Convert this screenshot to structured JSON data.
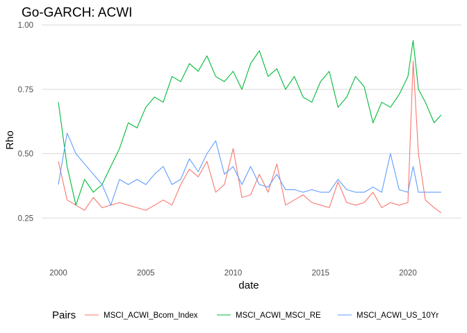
{
  "chart_data": {
    "type": "line",
    "title": "Go-GARCH: ACWI",
    "xlabel": "date",
    "ylabel": "Rho",
    "xlim": [
      2000,
      2021.9
    ],
    "ylim": [
      0.1,
      1.0
    ],
    "x_ticks": [
      2000,
      2005,
      2010,
      2015,
      2020
    ],
    "x_tick_labels": [
      "2000",
      "2005",
      "2010",
      "2015",
      "2020"
    ],
    "y_ticks": [
      0.25,
      0.5,
      0.75,
      1.0
    ],
    "y_tick_labels": [
      "0.25",
      "0.50",
      "0.75",
      "1.00"
    ],
    "grid": true,
    "legend": {
      "title": "Pairs",
      "position": "bottom",
      "entries": [
        "MSCI_ACWI_Bcom_Index",
        "MSCI_ACWI_MSCI_RE",
        "MSCI_ACWI_US_10Yr"
      ]
    },
    "series": [
      {
        "name": "MSCI_ACWI_Bcom_Index",
        "color": "#F8766D",
        "x": [
          2000.0,
          2000.5,
          2001.0,
          2001.5,
          2002.0,
          2002.5,
          2003.0,
          2003.5,
          2004.0,
          2004.5,
          2005.0,
          2005.5,
          2006.0,
          2006.5,
          2007.0,
          2007.5,
          2008.0,
          2008.5,
          2009.0,
          2009.5,
          2010.0,
          2010.5,
          2011.0,
          2011.5,
          2012.0,
          2012.5,
          2013.0,
          2013.5,
          2014.0,
          2014.5,
          2015.0,
          2015.5,
          2016.0,
          2016.5,
          2017.0,
          2017.5,
          2018.0,
          2018.5,
          2019.0,
          2019.5,
          2020.0,
          2020.3,
          2020.6,
          2021.0,
          2021.5,
          2021.9
        ],
        "values": [
          0.47,
          0.32,
          0.3,
          0.28,
          0.33,
          0.29,
          0.3,
          0.31,
          0.3,
          0.29,
          0.28,
          0.3,
          0.32,
          0.3,
          0.38,
          0.44,
          0.41,
          0.47,
          0.35,
          0.38,
          0.52,
          0.33,
          0.34,
          0.42,
          0.35,
          0.46,
          0.3,
          0.32,
          0.34,
          0.31,
          0.3,
          0.29,
          0.39,
          0.31,
          0.3,
          0.31,
          0.35,
          0.29,
          0.31,
          0.3,
          0.31,
          0.86,
          0.5,
          0.32,
          0.29,
          0.27
        ]
      },
      {
        "name": "MSCI_ACWI_MSCI_RE",
        "color": "#00BA38",
        "x": [
          2000.0,
          2000.5,
          2001.0,
          2001.5,
          2002.0,
          2002.5,
          2003.0,
          2003.5,
          2004.0,
          2004.5,
          2005.0,
          2005.5,
          2006.0,
          2006.5,
          2007.0,
          2007.5,
          2008.0,
          2008.5,
          2009.0,
          2009.5,
          2010.0,
          2010.5,
          2011.0,
          2011.5,
          2012.0,
          2012.5,
          2013.0,
          2013.5,
          2014.0,
          2014.5,
          2015.0,
          2015.5,
          2016.0,
          2016.5,
          2017.0,
          2017.5,
          2018.0,
          2018.5,
          2019.0,
          2019.5,
          2020.0,
          2020.3,
          2020.6,
          2021.0,
          2021.5,
          2021.9
        ],
        "values": [
          0.7,
          0.45,
          0.3,
          0.4,
          0.35,
          0.38,
          0.45,
          0.52,
          0.62,
          0.6,
          0.68,
          0.72,
          0.7,
          0.8,
          0.78,
          0.85,
          0.82,
          0.88,
          0.8,
          0.78,
          0.82,
          0.75,
          0.85,
          0.9,
          0.8,
          0.83,
          0.75,
          0.8,
          0.72,
          0.7,
          0.78,
          0.82,
          0.68,
          0.72,
          0.8,
          0.76,
          0.62,
          0.7,
          0.68,
          0.73,
          0.8,
          0.94,
          0.75,
          0.7,
          0.62,
          0.65
        ]
      },
      {
        "name": "MSCI_ACWI_US_10Yr",
        "color": "#619CFF",
        "x": [
          2000.0,
          2000.5,
          2001.0,
          2001.5,
          2002.0,
          2002.5,
          2003.0,
          2003.5,
          2004.0,
          2004.5,
          2005.0,
          2005.5,
          2006.0,
          2006.5,
          2007.0,
          2007.5,
          2008.0,
          2008.5,
          2009.0,
          2009.5,
          2010.0,
          2010.5,
          2011.0,
          2011.5,
          2012.0,
          2012.5,
          2013.0,
          2013.5,
          2014.0,
          2014.5,
          2015.0,
          2015.5,
          2016.0,
          2016.5,
          2017.0,
          2017.5,
          2018.0,
          2018.5,
          2019.0,
          2019.5,
          2020.0,
          2020.3,
          2020.6,
          2021.0,
          2021.5,
          2021.9
        ],
        "values": [
          0.38,
          0.58,
          0.5,
          0.46,
          0.42,
          0.38,
          0.3,
          0.4,
          0.38,
          0.4,
          0.38,
          0.42,
          0.45,
          0.38,
          0.4,
          0.48,
          0.43,
          0.5,
          0.55,
          0.42,
          0.45,
          0.38,
          0.45,
          0.38,
          0.37,
          0.42,
          0.36,
          0.36,
          0.35,
          0.36,
          0.35,
          0.35,
          0.4,
          0.36,
          0.35,
          0.35,
          0.37,
          0.35,
          0.5,
          0.36,
          0.35,
          0.45,
          0.35,
          0.35,
          0.35,
          0.35
        ]
      }
    ]
  }
}
